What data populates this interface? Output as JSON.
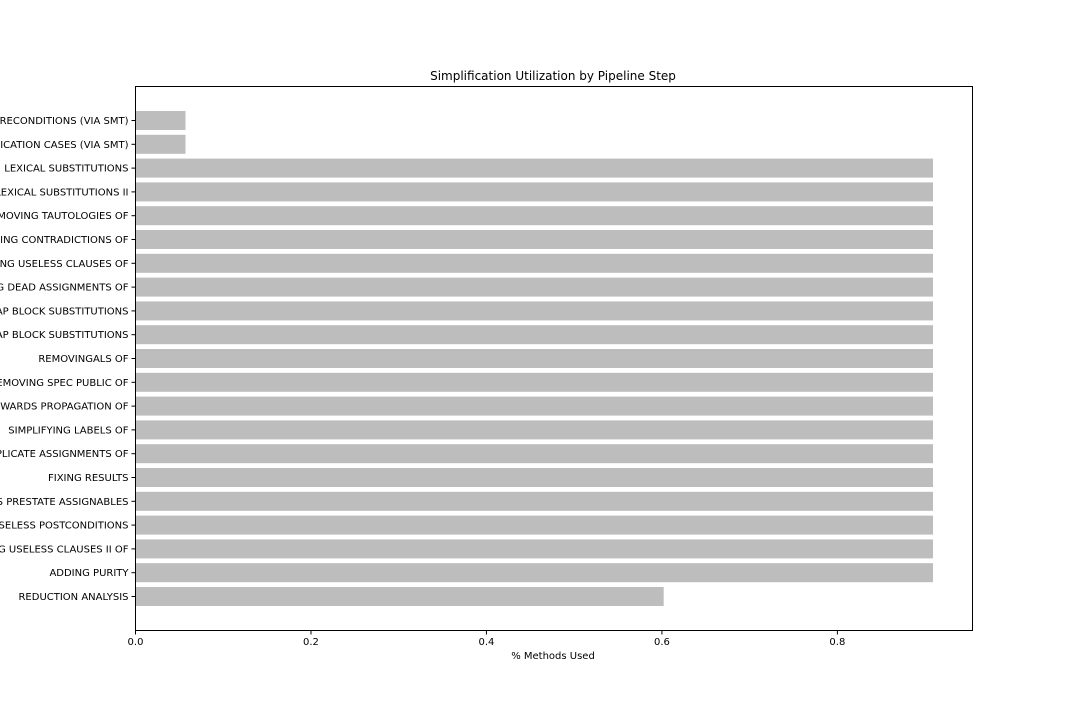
{
  "chart_data": {
    "type": "bar",
    "orientation": "horizontal",
    "title": "Simplification Utilization by Pipeline Step",
    "xlabel": "% Methods Used",
    "ylabel": "",
    "xlim": [
      0,
      0.954
    ],
    "xticks": [
      "0.0",
      "0.2",
      "0.4",
      "0.6",
      "0.8"
    ],
    "tick_values": [
      0,
      0.2,
      0.4,
      0.6,
      0.8
    ],
    "grid": false,
    "bar_color": "#bdbdbd",
    "categories": [
      "RECONDITIONS (VIA SMT)",
      "ICATION CASES (VIA SMT)",
      "LEXICAL SUBSTITUTIONS",
      "LEXICAL SUBSTITUTIONS II",
      "MOVING TAUTOLOGIES OF",
      "ING CONTRADICTIONS OF",
      "NG USELESS CLAUSES OF",
      "G DEAD ASSIGNMENTS OF",
      "AP BLOCK SUBSTITUTIONS",
      "AP BLOCK SUBSTITUTIONS",
      "REMOVINGALS OF",
      "EMOVING SPEC PUBLIC OF",
      "WARDS PROPAGATION OF",
      "SIMPLIFYING LABELS OF",
      "PLICATE ASSIGNMENTS OF",
      "FIXING RESULTS",
      "S PRESTATE ASSIGNABLES",
      "SELESS POSTCONDITIONS",
      "G USELESS CLAUSES II OF",
      "ADDING PURITY",
      "REDUCTION ANALYSIS"
    ],
    "values": [
      0.057,
      0.057,
      0.909,
      0.909,
      0.909,
      0.909,
      0.909,
      0.909,
      0.909,
      0.909,
      0.909,
      0.909,
      0.909,
      0.909,
      0.909,
      0.909,
      0.909,
      0.909,
      0.909,
      0.909,
      0.602
    ]
  }
}
